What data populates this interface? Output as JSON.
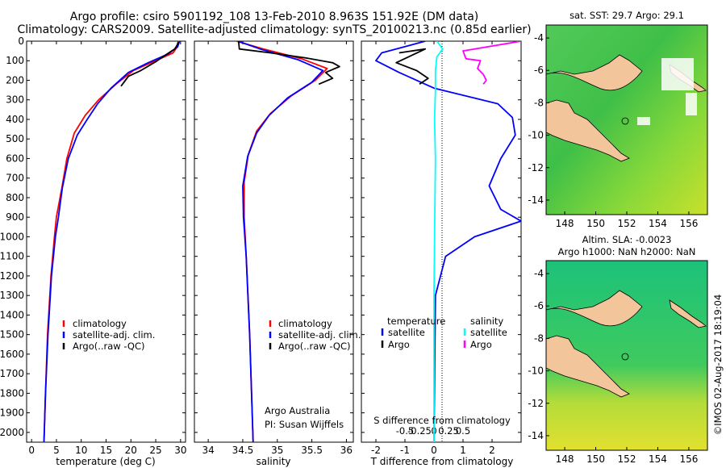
{
  "title_line1": "Argo profile: csiro 5901192_108 13-Feb-2010 8.963S 151.92E (DM data)",
  "title_line2": "Climatology: CARS2009. Satellite-adjusted climatology: synTS_20100213.nc (0.85d earlier)",
  "credit": "Argo Australia",
  "pi": "PI: Susan Wijffels",
  "stamp": "©IMOS 02-Aug-2017 18:19:04",
  "colors": {
    "climatology": "#ff0000",
    "satellite": "#0000ff",
    "argo": "#000000",
    "sat_salinity": "#00ffff",
    "argo_salinity": "#ff00ff"
  },
  "chart_data": [
    {
      "type": "line",
      "id": "temperature",
      "xlabel": "temperature (deg C)",
      "ylim": [
        2050,
        0
      ],
      "xlim": [
        -1,
        31
      ],
      "xticks": [
        0,
        5,
        10,
        15,
        20,
        25,
        30
      ],
      "yticks": [
        0,
        100,
        200,
        300,
        400,
        500,
        600,
        700,
        800,
        900,
        1000,
        1100,
        1200,
        1300,
        1400,
        1500,
        1600,
        1700,
        1800,
        1900,
        2000
      ],
      "legend": [
        "climatology",
        "satellite-adj. clim.",
        "Argo(..raw -QC)"
      ],
      "series": [
        {
          "name": "climatology",
          "color": "#ff0000",
          "points": [
            [
              29.5,
              0
            ],
            [
              29.3,
              30
            ],
            [
              28.5,
              60
            ],
            [
              25,
              100
            ],
            [
              20.5,
              150
            ],
            [
              17,
              220
            ],
            [
              13.5,
              300
            ],
            [
              10.8,
              380
            ],
            [
              8.6,
              470
            ],
            [
              7.1,
              600
            ],
            [
              6.1,
              750
            ],
            [
              5.0,
              900
            ],
            [
              4.6,
              1000
            ],
            [
              3.9,
              1200
            ],
            [
              3.2,
              1500
            ],
            [
              2.8,
              1800
            ],
            [
              2.5,
              2050
            ]
          ]
        },
        {
          "name": "satellite-adj. clim.",
          "color": "#0000ff",
          "points": [
            [
              29.8,
              0
            ],
            [
              29.4,
              30
            ],
            [
              27.5,
              65
            ],
            [
              23.5,
              110
            ],
            [
              19.5,
              160
            ],
            [
              16,
              240
            ],
            [
              13.3,
              320
            ],
            [
              11.2,
              400
            ],
            [
              9.2,
              480
            ],
            [
              7.4,
              600
            ],
            [
              6.2,
              750
            ],
            [
              5.4,
              900
            ],
            [
              4.8,
              1000
            ],
            [
              4.0,
              1200
            ],
            [
              3.3,
              1500
            ],
            [
              2.8,
              1800
            ],
            [
              2.5,
              2050
            ]
          ]
        },
        {
          "name": "Argo(..raw -QC)",
          "color": "#000000",
          "points": [
            [
              29.6,
              5
            ],
            [
              29.2,
              25
            ],
            [
              28.8,
              40
            ],
            [
              27,
              70
            ],
            [
              25,
              105
            ],
            [
              22,
              150
            ],
            [
              19.5,
              180
            ],
            [
              18,
              230
            ]
          ]
        }
      ]
    },
    {
      "type": "line",
      "id": "salinity",
      "xlabel": "salinity",
      "ylim": [
        2050,
        0
      ],
      "xlim": [
        33.8,
        36.1
      ],
      "xticks": [
        34,
        34.5,
        35,
        35.5,
        36
      ],
      "legend": [
        "climatology",
        "satellite-adj. clim.",
        "Argo(..raw -QC)"
      ],
      "series": [
        {
          "name": "climatology",
          "color": "#ff0000",
          "points": [
            [
              34.41,
              0
            ],
            [
              34.8,
              40
            ],
            [
              35.35,
              90
            ],
            [
              35.72,
              140
            ],
            [
              35.55,
              200
            ],
            [
              35.2,
              280
            ],
            [
              34.9,
              370
            ],
            [
              34.7,
              460
            ],
            [
              34.58,
              580
            ],
            [
              34.52,
              720
            ],
            [
              34.52,
              900
            ],
            [
              34.55,
              1100
            ],
            [
              34.6,
              1500
            ],
            [
              34.65,
              2050
            ]
          ]
        },
        {
          "name": "satellite-adj. clim.",
          "color": "#0000ff",
          "points": [
            [
              34.43,
              0
            ],
            [
              34.75,
              40
            ],
            [
              35.3,
              95
            ],
            [
              35.66,
              150
            ],
            [
              35.5,
              210
            ],
            [
              35.15,
              290
            ],
            [
              34.88,
              380
            ],
            [
              34.7,
              470
            ],
            [
              34.57,
              590
            ],
            [
              34.5,
              740
            ],
            [
              34.51,
              900
            ],
            [
              34.55,
              1100
            ],
            [
              34.6,
              1500
            ],
            [
              34.65,
              2050
            ]
          ]
        },
        {
          "name": "Argo(..raw -QC)",
          "color": "#000000",
          "points": [
            [
              34.44,
              0
            ],
            [
              34.45,
              40
            ],
            [
              34.9,
              60
            ],
            [
              35.4,
              85
            ],
            [
              35.8,
              110
            ],
            [
              35.9,
              130
            ],
            [
              35.7,
              160
            ],
            [
              35.8,
              190
            ],
            [
              35.6,
              220
            ]
          ]
        }
      ]
    },
    {
      "type": "line",
      "id": "difference",
      "xlabel": "T difference from climatology",
      "xlabel2": "S difference from climatology",
      "ylim": [
        2050,
        0
      ],
      "xlim": [
        -2.5,
        3
      ],
      "xticks": [
        -2,
        -1,
        0,
        1,
        2
      ],
      "xticks2": [
        -0.5,
        -0.25,
        0,
        0.25,
        0.5
      ],
      "legend_temperature": "temperature",
      "legend_salinity": "salinity",
      "legend_items": [
        "satellite",
        "Argo",
        "satellite",
        "Argo"
      ],
      "series": [
        {
          "name": "satellite",
          "color": "#0000ff",
          "points": [
            [
              -0.3,
              0
            ],
            [
              -1.8,
              60
            ],
            [
              -2.0,
              100
            ],
            [
              -1.2,
              160
            ],
            [
              0,
              240
            ],
            [
              2.2,
              320
            ],
            [
              2.7,
              390
            ],
            [
              2.8,
              480
            ],
            [
              2.3,
              600
            ],
            [
              1.9,
              740
            ],
            [
              2.3,
              860
            ],
            [
              3.0,
              920
            ],
            [
              1.4,
              1000
            ],
            [
              0.4,
              1100
            ],
            [
              0.05,
              1300
            ],
            [
              0,
              2050
            ]
          ]
        },
        {
          "name": "Argo",
          "color": "#000000",
          "points": [
            [
              -1.2,
              60
            ],
            [
              -0.3,
              40
            ],
            [
              -1.3,
              110
            ],
            [
              -0.6,
              150
            ],
            [
              -0.2,
              190
            ],
            [
              -0.5,
              220
            ]
          ]
        },
        {
          "name": "satellite",
          "color": "#00ffff",
          "points": [
            [
              0.1,
              0
            ],
            [
              0.3,
              40
            ],
            [
              0.1,
              80
            ],
            [
              0.05,
              150
            ],
            [
              0.05,
              250
            ],
            [
              0.02,
              400
            ],
            [
              0.05,
              600
            ],
            [
              0.02,
              1000
            ],
            [
              0,
              1300
            ],
            [
              0,
              2050
            ]
          ]
        },
        {
          "name": "Argo",
          "color": "#ff00ff",
          "points": [
            [
              3.0,
              0
            ],
            [
              1.0,
              50
            ],
            [
              1.1,
              90
            ],
            [
              1.6,
              100
            ],
            [
              1.5,
              140
            ],
            [
              1.7,
              170
            ],
            [
              1.8,
              200
            ],
            [
              1.7,
              220
            ]
          ]
        }
      ]
    },
    {
      "type": "heatmap",
      "id": "sst-map",
      "title": "sat. SST: 29.7 Argo: 29.1",
      "xticks": [
        148,
        150,
        152,
        154,
        156
      ],
      "yticks": [
        -4,
        -6,
        -8,
        -10,
        -12,
        -14
      ],
      "xlim": [
        146.8,
        157.2
      ],
      "ylim": [
        -14.9,
        -3.2
      ]
    },
    {
      "type": "heatmap",
      "id": "sla-map",
      "title": "Altim. SLA: -0.0023",
      "subtitle": "Argo h1000: NaN h2000: NaN",
      "xticks": [
        148,
        150,
        152,
        154,
        156
      ],
      "yticks": [
        -4,
        -6,
        -8,
        -10,
        -12,
        -14
      ],
      "xlim": [
        146.8,
        157.2
      ],
      "ylim": [
        -14.9,
        -3.2
      ]
    }
  ]
}
